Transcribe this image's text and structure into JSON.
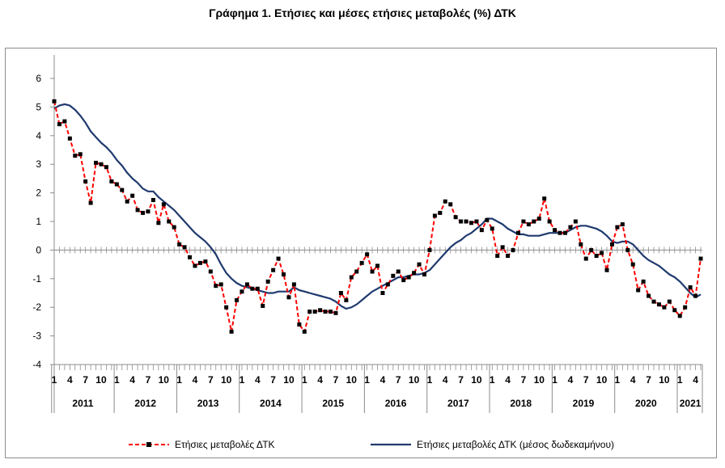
{
  "chart_data": {
    "type": "line",
    "title": "Γράφημα 1. Ετήσιες και μέσες ετήσιες μεταβολές (%) ΔΤΚ",
    "ylim": [
      -4,
      6
    ],
    "yticks": [
      6,
      5,
      4,
      3,
      2,
      1,
      0,
      -1,
      -2,
      -3,
      -4
    ],
    "ytick_labels": [
      "6",
      "5",
      "4",
      "3",
      "2",
      "1",
      "0",
      "-1",
      "-2",
      "-3",
      "-4"
    ],
    "month_tick_labels": [
      "1",
      "4",
      "7",
      "10"
    ],
    "years": [
      "2011",
      "2012",
      "2013",
      "2014",
      "2015",
      "2016",
      "2017",
      "2018",
      "2019",
      "2020",
      "2021"
    ],
    "last_year_months": 4,
    "grid": false,
    "legend_position": "bottom",
    "series": [
      {
        "name": "Ετήσιες μεταβολές ΔΤΚ",
        "color": "#ff0000",
        "style": "dashed-with-square-markers",
        "marker_color": "#000000",
        "values": [
          5.2,
          4.4,
          4.5,
          3.9,
          3.3,
          3.35,
          2.4,
          1.65,
          3.05,
          3.0,
          2.9,
          2.4,
          2.3,
          2.1,
          1.7,
          1.9,
          1.4,
          1.3,
          1.35,
          1.75,
          0.95,
          1.6,
          1.0,
          0.8,
          0.2,
          0.1,
          -0.25,
          -0.55,
          -0.45,
          -0.4,
          -0.75,
          -1.25,
          -1.2,
          -2.0,
          -2.85,
          -1.75,
          -1.45,
          -1.2,
          -1.35,
          -1.35,
          -1.95,
          -1.1,
          -0.7,
          -0.3,
          -0.85,
          -1.65,
          -1.2,
          -2.6,
          -2.85,
          -2.15,
          -2.15,
          -2.1,
          -2.15,
          -2.15,
          -2.2,
          -1.5,
          -1.75,
          -0.95,
          -0.75,
          -0.45,
          -0.15,
          -0.75,
          -0.55,
          -1.5,
          -1.2,
          -0.9,
          -0.75,
          -1.05,
          -0.95,
          -0.8,
          -0.5,
          -0.85,
          0.0,
          1.2,
          1.3,
          1.7,
          1.6,
          1.15,
          1.0,
          1.0,
          0.95,
          1.0,
          0.7,
          1.05,
          0.75,
          -0.2,
          0.1,
          -0.2,
          0.0,
          0.6,
          1.0,
          0.9,
          1.0,
          1.1,
          1.8,
          1.0,
          0.7,
          0.6,
          0.6,
          0.8,
          1.0,
          0.2,
          -0.3,
          0.0,
          -0.2,
          -0.1,
          -0.7,
          0.2,
          0.8,
          0.9,
          0.0,
          -0.5,
          -1.4,
          -1.1,
          -1.6,
          -1.8,
          -1.9,
          -2.0,
          -1.8,
          -2.1,
          -2.3,
          -2.0,
          -1.3,
          -1.6,
          -0.3
        ]
      },
      {
        "name": "Ετήσιες μεταβολές ΔΤΚ (μέσος δωδεκαμήνου)",
        "color": "#1f3a6e",
        "style": "solid",
        "values": [
          4.95,
          5.05,
          5.1,
          5.05,
          4.9,
          4.7,
          4.45,
          4.15,
          3.95,
          3.75,
          3.6,
          3.4,
          3.15,
          2.95,
          2.7,
          2.5,
          2.35,
          2.15,
          2.05,
          2.05,
          1.85,
          1.7,
          1.55,
          1.4,
          1.2,
          1.0,
          0.8,
          0.6,
          0.45,
          0.3,
          0.1,
          -0.15,
          -0.5,
          -0.8,
          -1.0,
          -1.15,
          -1.25,
          -1.3,
          -1.35,
          -1.4,
          -1.45,
          -1.5,
          -1.5,
          -1.45,
          -1.45,
          -1.45,
          -1.3,
          -1.4,
          -1.45,
          -1.5,
          -1.55,
          -1.6,
          -1.65,
          -1.7,
          -1.8,
          -1.95,
          -2.05,
          -2.0,
          -1.9,
          -1.75,
          -1.6,
          -1.45,
          -1.35,
          -1.25,
          -1.15,
          -1.05,
          -0.95,
          -0.95,
          -0.9,
          -0.85,
          -0.85,
          -0.8,
          -0.7,
          -0.5,
          -0.3,
          -0.1,
          0.1,
          0.25,
          0.35,
          0.5,
          0.6,
          0.75,
          0.9,
          1.1,
          1.1,
          1.0,
          0.9,
          0.75,
          0.65,
          0.55,
          0.55,
          0.5,
          0.5,
          0.5,
          0.55,
          0.6,
          0.6,
          0.6,
          0.6,
          0.7,
          0.8,
          0.85,
          0.85,
          0.8,
          0.75,
          0.65,
          0.5,
          0.3,
          0.25,
          0.3,
          0.3,
          0.2,
          0.0,
          -0.2,
          -0.35,
          -0.45,
          -0.55,
          -0.7,
          -0.85,
          -0.95,
          -1.1,
          -1.3,
          -1.5,
          -1.65,
          -1.55
        ]
      }
    ]
  }
}
